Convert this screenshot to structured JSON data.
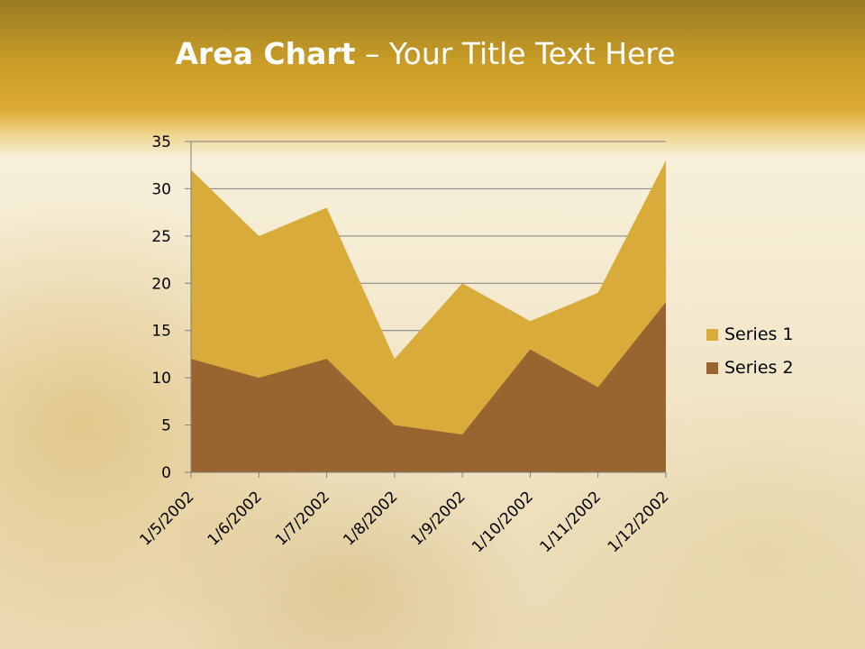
{
  "slide": {
    "title_bold": "Area Chart",
    "title_rest": " – Your Title Text Here"
  },
  "colors": {
    "series1": "#d8ab3a",
    "series2": "#9a6431",
    "grid": "#7f7f7f"
  },
  "chart_data": {
    "type": "area",
    "categories": [
      "1/5/2002",
      "1/6/2002",
      "1/7/2002",
      "1/8/2002",
      "1/9/2002",
      "1/10/2002",
      "1/11/2002",
      "1/12/2002"
    ],
    "series": [
      {
        "name": "Series 1",
        "values": [
          32,
          25,
          28,
          12,
          20,
          16,
          19,
          33
        ]
      },
      {
        "name": "Series 2",
        "values": [
          12,
          10,
          12,
          5,
          4,
          13,
          9,
          18
        ]
      }
    ],
    "ylim": [
      0,
      35
    ],
    "yticks": [
      "0",
      "5",
      "10",
      "15",
      "20",
      "25",
      "30",
      "35"
    ],
    "grid": true,
    "legend_position": "right"
  }
}
